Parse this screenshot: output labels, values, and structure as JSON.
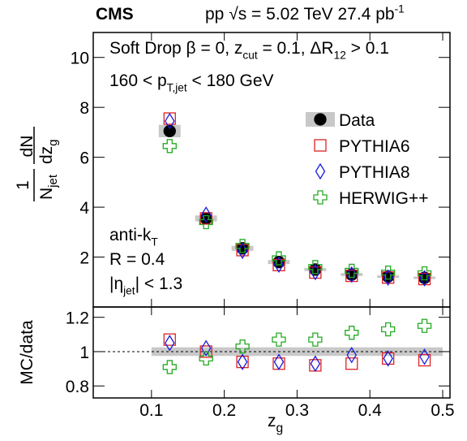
{
  "chart_data": [
    {
      "type": "scatter",
      "title": "CMS",
      "subtitle": [
        "pp √s = 5.02 TeV  27.4 pb",
        "-1"
      ],
      "annotations": [
        [
          "Soft Drop β = 0, z",
          "cut",
          " = 0.1, ΔR",
          "12",
          " > 0.1"
        ],
        [
          "160 < p",
          "T,jet",
          " < 180 GeV"
        ],
        [
          "anti-k",
          "T"
        ],
        [
          "R = 0.4"
        ],
        [
          "|η",
          "jet",
          "| < 1.3"
        ]
      ],
      "ylabel": [
        "1",
        "N",
        "jet",
        "dN",
        "dz",
        "g"
      ],
      "x": [
        0.125,
        0.175,
        0.225,
        0.275,
        0.325,
        0.375,
        0.425,
        0.475
      ],
      "xlim": [
        0.02,
        0.51
      ],
      "ylim": [
        0,
        11
      ],
      "yticks": [
        2,
        4,
        6,
        8,
        10
      ],
      "legend": "upper right",
      "series": [
        {
          "name": "Data",
          "color": "#000000",
          "marker": "circle",
          "values": [
            7.05,
            3.55,
            2.35,
            1.8,
            1.5,
            1.3,
            1.22,
            1.17
          ],
          "errors": [
            0.25,
            0.12,
            0.1,
            0.08,
            0.06,
            0.06,
            0.05,
            0.05
          ]
        },
        {
          "name": "PYTHIA6",
          "color": "#dd2222",
          "marker": "square",
          "values": [
            7.55,
            3.55,
            2.28,
            1.68,
            1.38,
            1.25,
            1.18,
            1.12
          ]
        },
        {
          "name": "PYTHIA8",
          "color": "#1a1adf",
          "marker": "diamond",
          "values": [
            7.45,
            3.7,
            2.25,
            1.7,
            1.4,
            1.3,
            1.18,
            1.15
          ]
        },
        {
          "name": "HERWIG++",
          "color": "#22aa22",
          "marker": "cross",
          "values": [
            6.45,
            3.4,
            2.45,
            1.95,
            1.6,
            1.45,
            1.38,
            1.35
          ]
        }
      ]
    },
    {
      "type": "scatter",
      "ylabel": "MC/data",
      "xlabel": [
        "z",
        "g"
      ],
      "x": [
        0.125,
        0.175,
        0.225,
        0.275,
        0.325,
        0.375,
        0.425,
        0.475
      ],
      "xlim": [
        0.02,
        0.51
      ],
      "xticks": [
        0.1,
        0.2,
        0.3,
        0.4,
        0.5
      ],
      "ylim": [
        0.73,
        1.26
      ],
      "yticks": [
        0.8,
        1,
        1.2
      ],
      "reference": 1,
      "band": [
        0.025,
        0.025,
        0.025,
        0.025,
        0.025,
        0.025,
        0.025,
        0.025
      ],
      "series": [
        {
          "name": "PYTHIA6",
          "color": "#dd2222",
          "marker": "square",
          "values": [
            1.07,
            1.0,
            0.94,
            0.93,
            0.92,
            0.93,
            0.96,
            0.95
          ]
        },
        {
          "name": "PYTHIA8",
          "color": "#1a1adf",
          "marker": "diamond",
          "values": [
            1.05,
            1.02,
            0.94,
            0.94,
            0.93,
            0.98,
            0.96,
            0.97
          ]
        },
        {
          "name": "HERWIG++",
          "color": "#22aa22",
          "marker": "cross",
          "values": [
            0.91,
            0.96,
            1.03,
            1.07,
            1.07,
            1.11,
            1.13,
            1.15
          ]
        }
      ]
    }
  ]
}
